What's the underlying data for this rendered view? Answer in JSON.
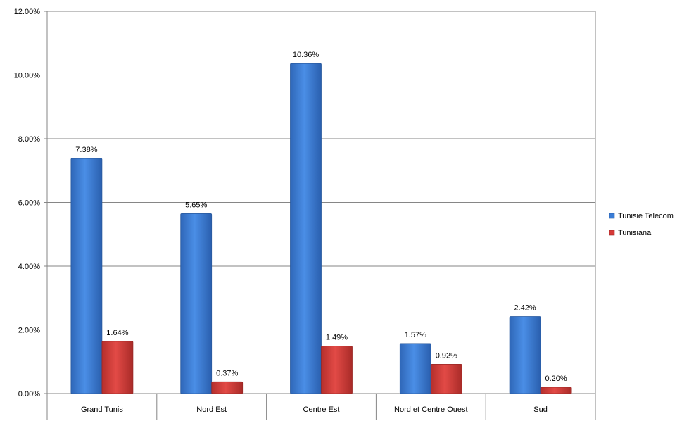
{
  "chart_data": {
    "type": "bar",
    "categories": [
      "Grand Tunis",
      "Nord Est",
      "Centre Est",
      "Nord et Centre Ouest",
      "Sud"
    ],
    "series": [
      {
        "name": "Tunisie Telecom",
        "values": [
          7.38,
          5.65,
          10.36,
          1.57,
          2.42
        ],
        "labels": [
          "7.38%",
          "5.65%",
          "10.36%",
          "1.57%",
          "2.42%"
        ],
        "color": "#3a7dd6"
      },
      {
        "name": "Tunisiana",
        "values": [
          1.64,
          0.37,
          1.49,
          0.92,
          0.2
        ],
        "labels": [
          "1.64%",
          "0.37%",
          "1.49%",
          "0.92%",
          "0.20%"
        ],
        "color": "#d63a37"
      }
    ],
    "y_ticks": [
      "0.00%",
      "2.00%",
      "4.00%",
      "6.00%",
      "8.00%",
      "10.00%",
      "12.00%"
    ],
    "ylim": [
      0,
      12
    ],
    "grid": true,
    "legend_position": "right"
  }
}
